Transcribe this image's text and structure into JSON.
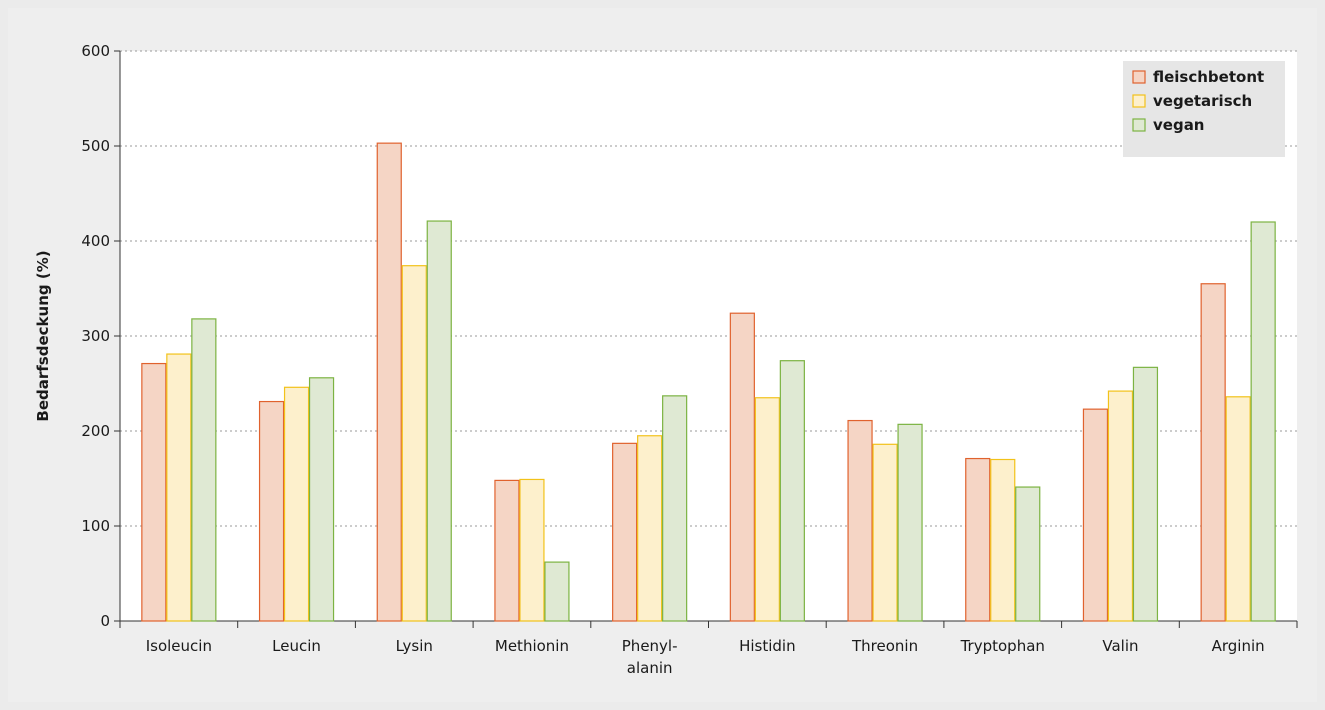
{
  "chart_data": {
    "type": "bar",
    "ylabel": "Bedarfsdeckung (%)",
    "ylim": [
      0,
      600
    ],
    "yticks": [
      0,
      100,
      200,
      300,
      400,
      500,
      600
    ],
    "grid": "horizontal dotted",
    "legend_position": "top-right",
    "categories": [
      [
        "Isoleucin"
      ],
      [
        "Leucin"
      ],
      [
        "Lysin"
      ],
      [
        "Methionin"
      ],
      [
        "Phenyl-",
        "alanin"
      ],
      [
        "Histidin"
      ],
      [
        "Threonin"
      ],
      [
        "Tryptophan"
      ],
      [
        "Valin"
      ],
      [
        "Arginin"
      ]
    ],
    "series": [
      {
        "name": "fleischbetont",
        "fill": "#f5d5c5",
        "stroke": "#e0622e",
        "values": [
          271,
          231,
          503,
          148,
          187,
          324,
          211,
          171,
          223,
          355
        ]
      },
      {
        "name": "vegetarisch",
        "fill": "#fdf0cc",
        "stroke": "#f2c21a",
        "values": [
          281,
          246,
          374,
          149,
          195,
          235,
          186,
          170,
          242,
          236
        ]
      },
      {
        "name": "vegan",
        "fill": "#dfe9d3",
        "stroke": "#7cb342",
        "values": [
          318,
          256,
          421,
          62,
          237,
          274,
          207,
          141,
          267,
          420
        ]
      }
    ]
  }
}
